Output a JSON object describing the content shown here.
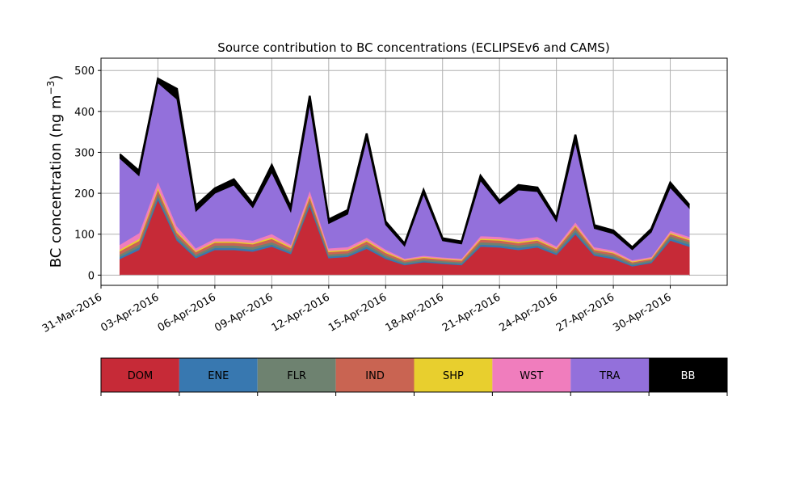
{
  "chart_data": {
    "type": "area",
    "stacked": true,
    "title": "Source contribution to BC concentrations (ECLIPSEv6 and CAMS)",
    "ylabel_main": "BC concentration (ng m",
    "ylabel_sup": "−3",
    "ylabel_close": ")",
    "xlabel": "",
    "xlim": [
      "2016-03-31",
      "2016-05-03"
    ],
    "ylim": [
      -25,
      530
    ],
    "yticks": [
      0,
      100,
      200,
      300,
      400,
      500
    ],
    "xtick_dates": [
      "2016-03-31",
      "2016-04-03",
      "2016-04-06",
      "2016-04-09",
      "2016-04-12",
      "2016-04-15",
      "2016-04-18",
      "2016-04-21",
      "2016-04-24",
      "2016-04-27",
      "2016-04-30"
    ],
    "xtick_labels": [
      "31-Mar-2016",
      "03-Apr-2016",
      "06-Apr-2016",
      "09-Apr-2016",
      "12-Apr-2016",
      "15-Apr-2016",
      "18-Apr-2016",
      "21-Apr-2016",
      "24-Apr-2016",
      "27-Apr-2016",
      "30-Apr-2016"
    ],
    "grid": true,
    "legend_position": "below chart (colorbar)",
    "x": [
      "2016-04-01",
      "2016-04-02",
      "2016-04-03",
      "2016-04-04",
      "2016-04-05",
      "2016-04-06",
      "2016-04-07",
      "2016-04-08",
      "2016-04-09",
      "2016-04-10",
      "2016-04-11",
      "2016-04-12",
      "2016-04-13",
      "2016-04-14",
      "2016-04-15",
      "2016-04-16",
      "2016-04-17",
      "2016-04-18",
      "2016-04-19",
      "2016-04-20",
      "2016-04-21",
      "2016-04-22",
      "2016-04-23",
      "2016-04-24",
      "2016-04-25",
      "2016-04-26",
      "2016-04-27",
      "2016-04-28",
      "2016-04-29",
      "2016-04-30",
      "2016-05-01"
    ],
    "series": [
      {
        "name": "DOM",
        "color": "#c62a37",
        "values": [
          40,
          62,
          185,
          85,
          42,
          62,
          62,
          58,
          70,
          52,
          170,
          42,
          45,
          65,
          40,
          25,
          32,
          28,
          25,
          70,
          68,
          62,
          68,
          50,
          100,
          48,
          40,
          22,
          30,
          85,
          70
        ]
      },
      {
        "name": "ENE",
        "color": "#3878b0",
        "values": [
          5,
          6,
          7,
          5,
          4,
          5,
          5,
          5,
          5,
          4,
          6,
          4,
          4,
          5,
          4,
          3,
          3,
          3,
          3,
          5,
          5,
          5,
          5,
          4,
          6,
          4,
          4,
          3,
          3,
          5,
          5
        ]
      },
      {
        "name": "FLR",
        "color": "#6e8270",
        "values": [
          6,
          7,
          8,
          6,
          5,
          6,
          6,
          6,
          6,
          5,
          7,
          5,
          5,
          6,
          5,
          4,
          4,
          4,
          4,
          6,
          6,
          6,
          6,
          5,
          7,
          5,
          5,
          4,
          4,
          6,
          6
        ]
      },
      {
        "name": "IND",
        "color": "#c96452",
        "values": [
          8,
          9,
          10,
          8,
          6,
          7,
          7,
          7,
          8,
          6,
          9,
          6,
          6,
          7,
          6,
          4,
          4,
          4,
          4,
          6,
          6,
          6,
          6,
          5,
          7,
          5,
          5,
          3,
          3,
          5,
          5
        ]
      },
      {
        "name": "SHP",
        "color": "#e8cf2e",
        "values": [
          4,
          5,
          5,
          4,
          3,
          3,
          3,
          3,
          4,
          3,
          4,
          3,
          3,
          3,
          3,
          2,
          2,
          2,
          2,
          3,
          3,
          3,
          3,
          2,
          3,
          2,
          2,
          2,
          2,
          3,
          3
        ]
      },
      {
        "name": "WST",
        "color": "#f07dbd",
        "values": [
          12,
          14,
          15,
          12,
          6,
          7,
          7,
          6,
          8,
          5,
          12,
          6,
          6,
          6,
          5,
          3,
          3,
          3,
          3,
          6,
          6,
          6,
          6,
          5,
          7,
          5,
          5,
          3,
          3,
          5,
          5
        ]
      },
      {
        "name": "TRA",
        "color": "#9370db",
        "values": [
          210,
          140,
          240,
          310,
          90,
          110,
          130,
          80,
          150,
          80,
          210,
          60,
          80,
          240,
          60,
          30,
          150,
          40,
          35,
          135,
          80,
          120,
          110,
          60,
          195,
          45,
          40,
          25,
          60,
          105,
          70
        ]
      },
      {
        "name": "BB",
        "color": "#000000",
        "values": [
          10,
          12,
          10,
          25,
          14,
          12,
          14,
          10,
          18,
          12,
          20,
          10,
          10,
          14,
          8,
          6,
          10,
          6,
          6,
          12,
          8,
          12,
          10,
          8,
          18,
          8,
          8,
          6,
          8,
          12,
          8
        ]
      }
    ],
    "colorbar_labels": [
      "DOM",
      "ENE",
      "FLR",
      "IND",
      "SHP",
      "WST",
      "TRA",
      "BB"
    ]
  }
}
